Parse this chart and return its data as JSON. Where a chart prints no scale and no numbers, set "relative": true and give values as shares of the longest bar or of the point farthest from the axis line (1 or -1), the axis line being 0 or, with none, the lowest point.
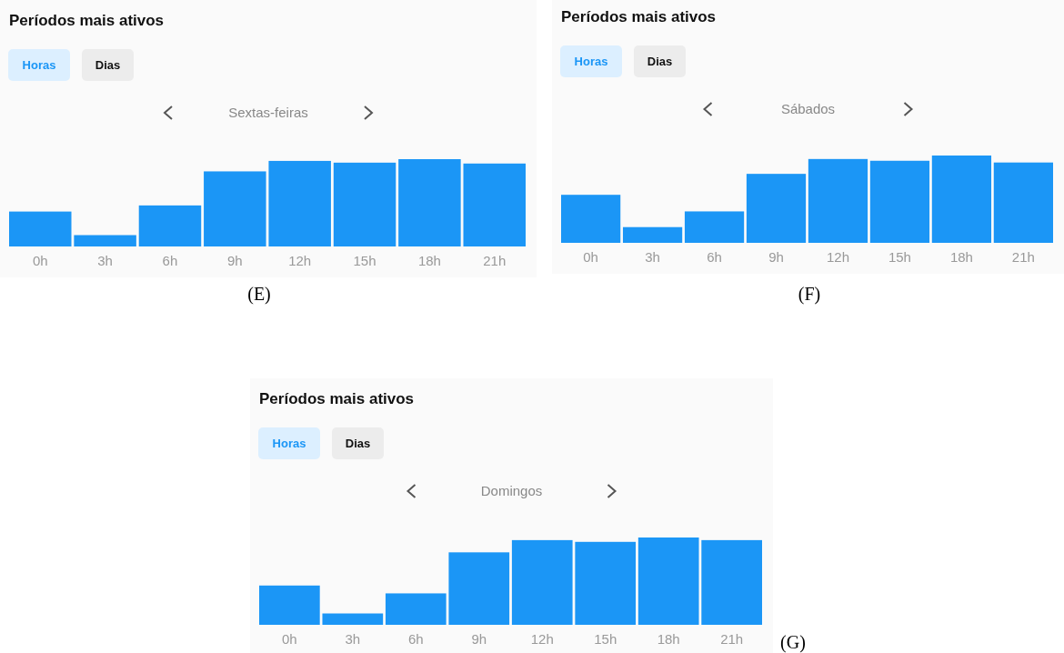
{
  "chart_data": [
    {
      "type": "bar",
      "title": "Períodos mais ativos",
      "subtitle": "Sextas-feiras",
      "categories": [
        "0h",
        "3h",
        "6h",
        "9h",
        "12h",
        "15h",
        "18h",
        "21h"
      ],
      "values": [
        0.4,
        0.13,
        0.47,
        0.86,
        0.98,
        0.96,
        1,
        0.95
      ],
      "color": "#1b96f6",
      "relative": true,
      "annotations": [
        "Horas",
        "Dias",
        "(E)"
      ]
    },
    {
      "type": "bar",
      "title": "Períodos mais ativos",
      "subtitle": "Sábados",
      "categories": [
        "0h",
        "3h",
        "6h",
        "9h",
        "12h",
        "15h",
        "18h",
        "21h"
      ],
      "values": [
        0.55,
        0.18,
        0.36,
        0.79,
        0.96,
        0.94,
        1,
        0.92
      ],
      "color": "#1b96f6",
      "relative": true,
      "annotations": [
        "Horas",
        "Dias",
        "(F)"
      ]
    },
    {
      "type": "bar",
      "title": "Períodos mais ativos",
      "subtitle": "Domingos",
      "categories": [
        "0h",
        "3h",
        "6h",
        "9h",
        "12h",
        "15h",
        "18h",
        "21h"
      ],
      "values": [
        0.45,
        0.13,
        0.36,
        0.83,
        0.97,
        0.95,
        1,
        0.97
      ],
      "color": "#1b96f6",
      "relative": true,
      "annotations": [
        "Horas",
        "Dias",
        "(G)"
      ]
    }
  ]
}
